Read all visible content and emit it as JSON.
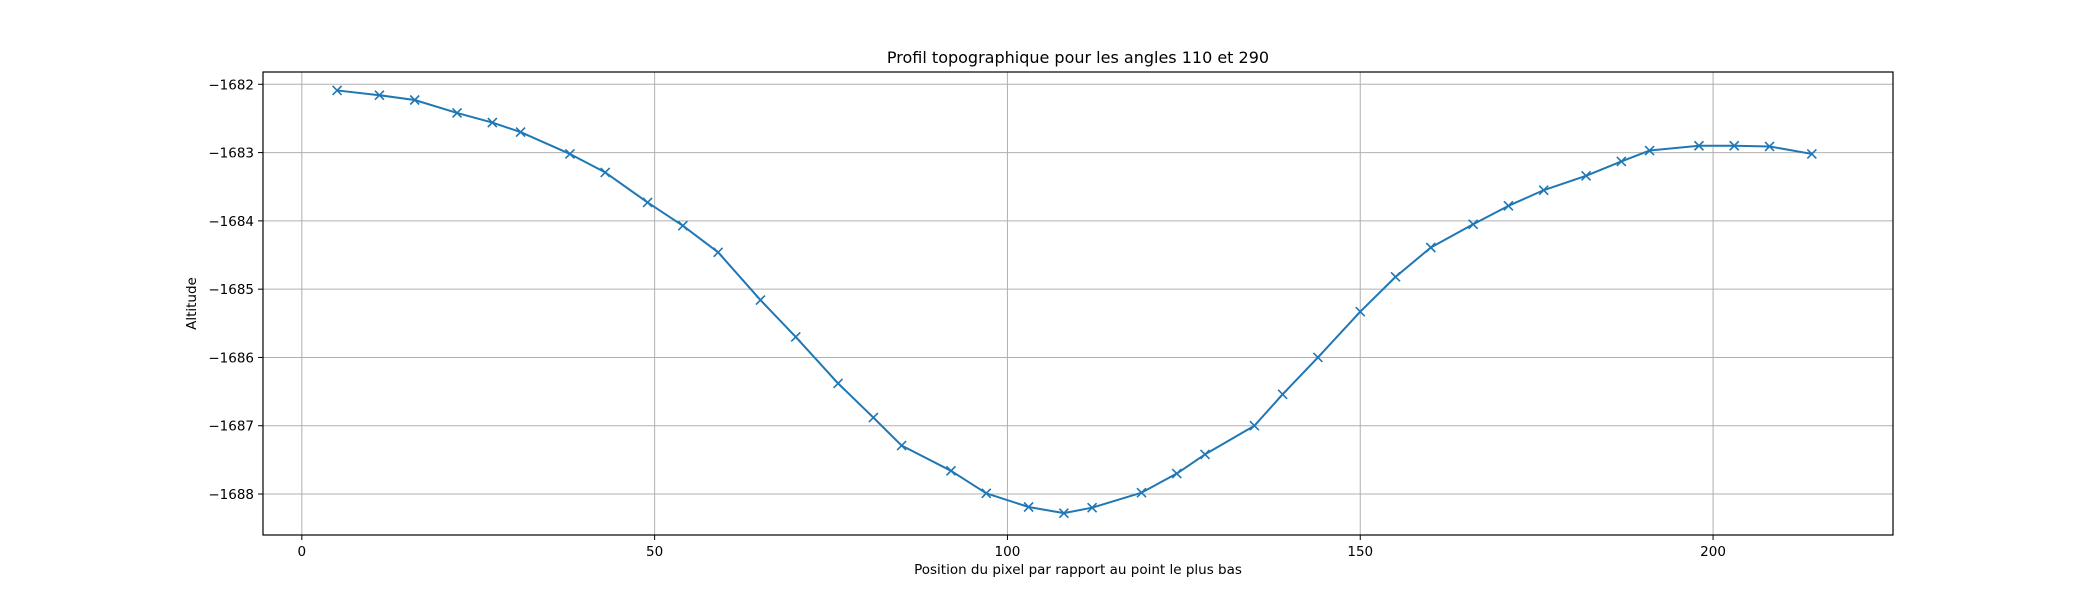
{
  "chart_data": {
    "type": "line",
    "title": "Profil topographique pour les angles 110 et 290",
    "xlabel": "Position du pixel par rapport au point le plus bas",
    "ylabel": "Altitude",
    "xlim": [
      -5.5,
      225.5
    ],
    "ylim": [
      -1688.6,
      -1681.82
    ],
    "xticks": [
      0,
      50,
      100,
      150,
      200
    ],
    "xtick_labels": [
      "0",
      "50",
      "100",
      "150",
      "200"
    ],
    "yticks": [
      -1682,
      -1683,
      -1684,
      -1685,
      -1686,
      -1687,
      -1688
    ],
    "ytick_labels": [
      "−1682",
      "−1683",
      "−1684",
      "−1685",
      "−1686",
      "−1687",
      "−1688"
    ],
    "grid": true,
    "line_color": "#1f77b4",
    "marker": "x",
    "series": [
      {
        "x": [
          5,
          11,
          16,
          22,
          27,
          31,
          38,
          43,
          49,
          54,
          59,
          65,
          70,
          76,
          81,
          85,
          92,
          97,
          103,
          108,
          112,
          119,
          124,
          128,
          135,
          139,
          144,
          150,
          155,
          160,
          166,
          171,
          176,
          182,
          187,
          191,
          198,
          203,
          208,
          214
        ],
        "y": [
          -1682.09,
          -1682.16,
          -1682.23,
          -1682.42,
          -1682.56,
          -1682.7,
          -1683.02,
          -1683.29,
          -1683.73,
          -1684.07,
          -1684.46,
          -1685.16,
          -1685.7,
          -1686.38,
          -1686.88,
          -1687.29,
          -1687.66,
          -1687.99,
          -1688.19,
          -1688.28,
          -1688.2,
          -1687.98,
          -1687.7,
          -1687.42,
          -1687,
          -1686.54,
          -1686,
          -1685.33,
          -1684.82,
          -1684.39,
          -1684.05,
          -1683.78,
          -1683.55,
          -1683.34,
          -1683.13,
          -1682.97,
          -1682.9,
          -1682.9,
          -1682.91,
          -1683.02
        ]
      }
    ]
  }
}
